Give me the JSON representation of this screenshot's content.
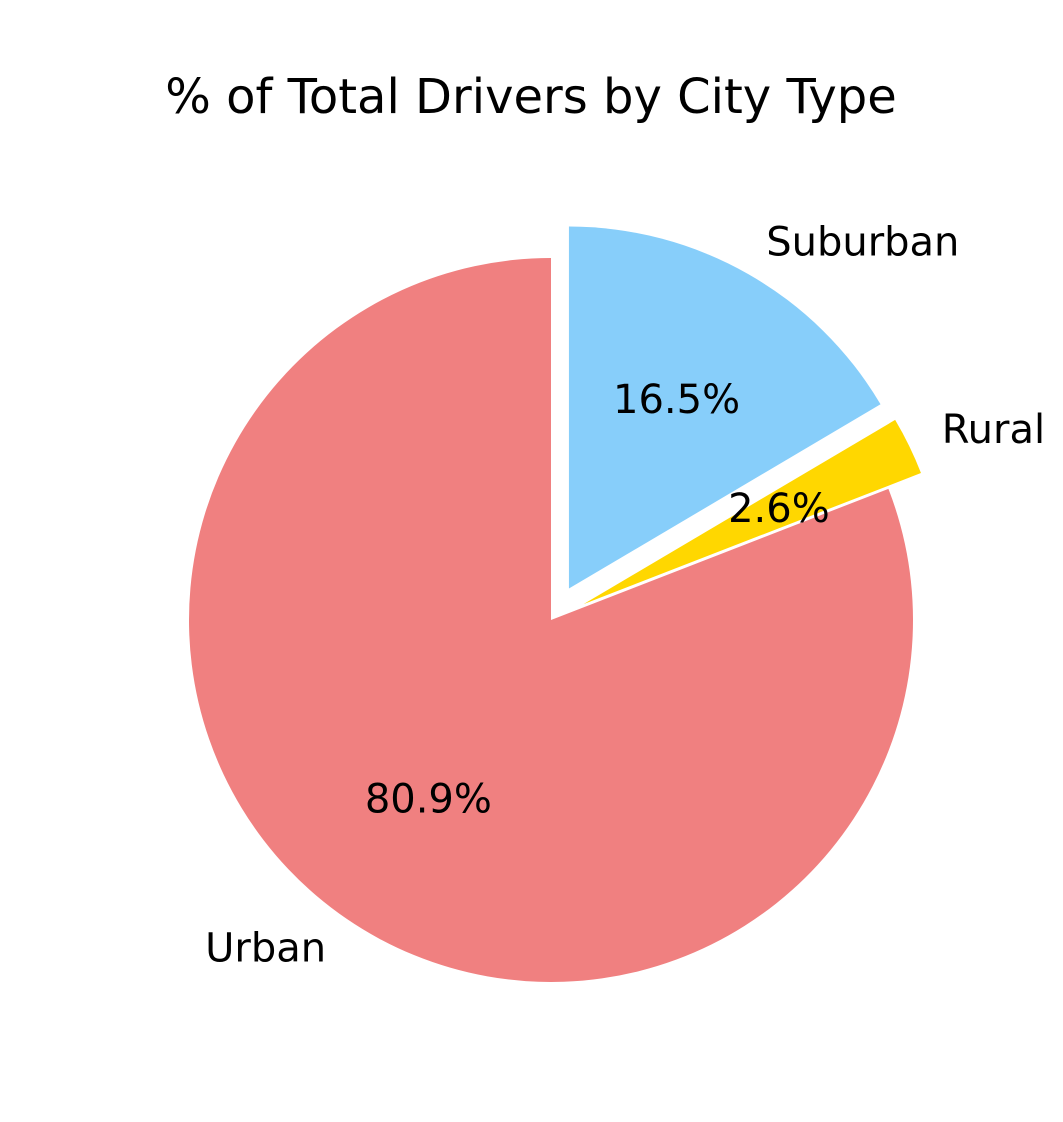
{
  "chart_data": {
    "type": "pie",
    "title": "% of Total Drivers by City Type",
    "slices": [
      {
        "label": "Urban",
        "value": 80.9,
        "pct_label": "80.9%",
        "color": "#F08080",
        "explode": 0
      },
      {
        "label": "Rural",
        "value": 2.6,
        "pct_label": "2.6%",
        "color": "#FFD700",
        "explode": 0.1
      },
      {
        "label": "Suburban",
        "value": 16.5,
        "pct_label": "16.5%",
        "color": "#87CEFA",
        "explode": 0.1
      }
    ],
    "start_angle_degrees": 90,
    "direction": "counterclockwise",
    "legend": "none"
  }
}
